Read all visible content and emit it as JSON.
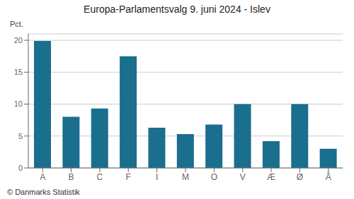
{
  "chart_data": {
    "type": "bar",
    "title": "Europa-Parlamentsvalg 9. juni 2024 - Islev",
    "categories": [
      "A",
      "B",
      "C",
      "F",
      "I",
      "M",
      "O",
      "V",
      "Æ",
      "Ø",
      "Å"
    ],
    "values": [
      19.9,
      8.0,
      9.3,
      17.5,
      6.3,
      5.3,
      6.8,
      10.0,
      4.2,
      10.0,
      3.0
    ],
    "color": "#1a6e8e",
    "ylabel": "Pct.",
    "ylim": [
      0,
      21
    ],
    "yticks": [
      0,
      5,
      10,
      15,
      20
    ],
    "grid": true,
    "footer": "© Danmarks Statistik"
  }
}
